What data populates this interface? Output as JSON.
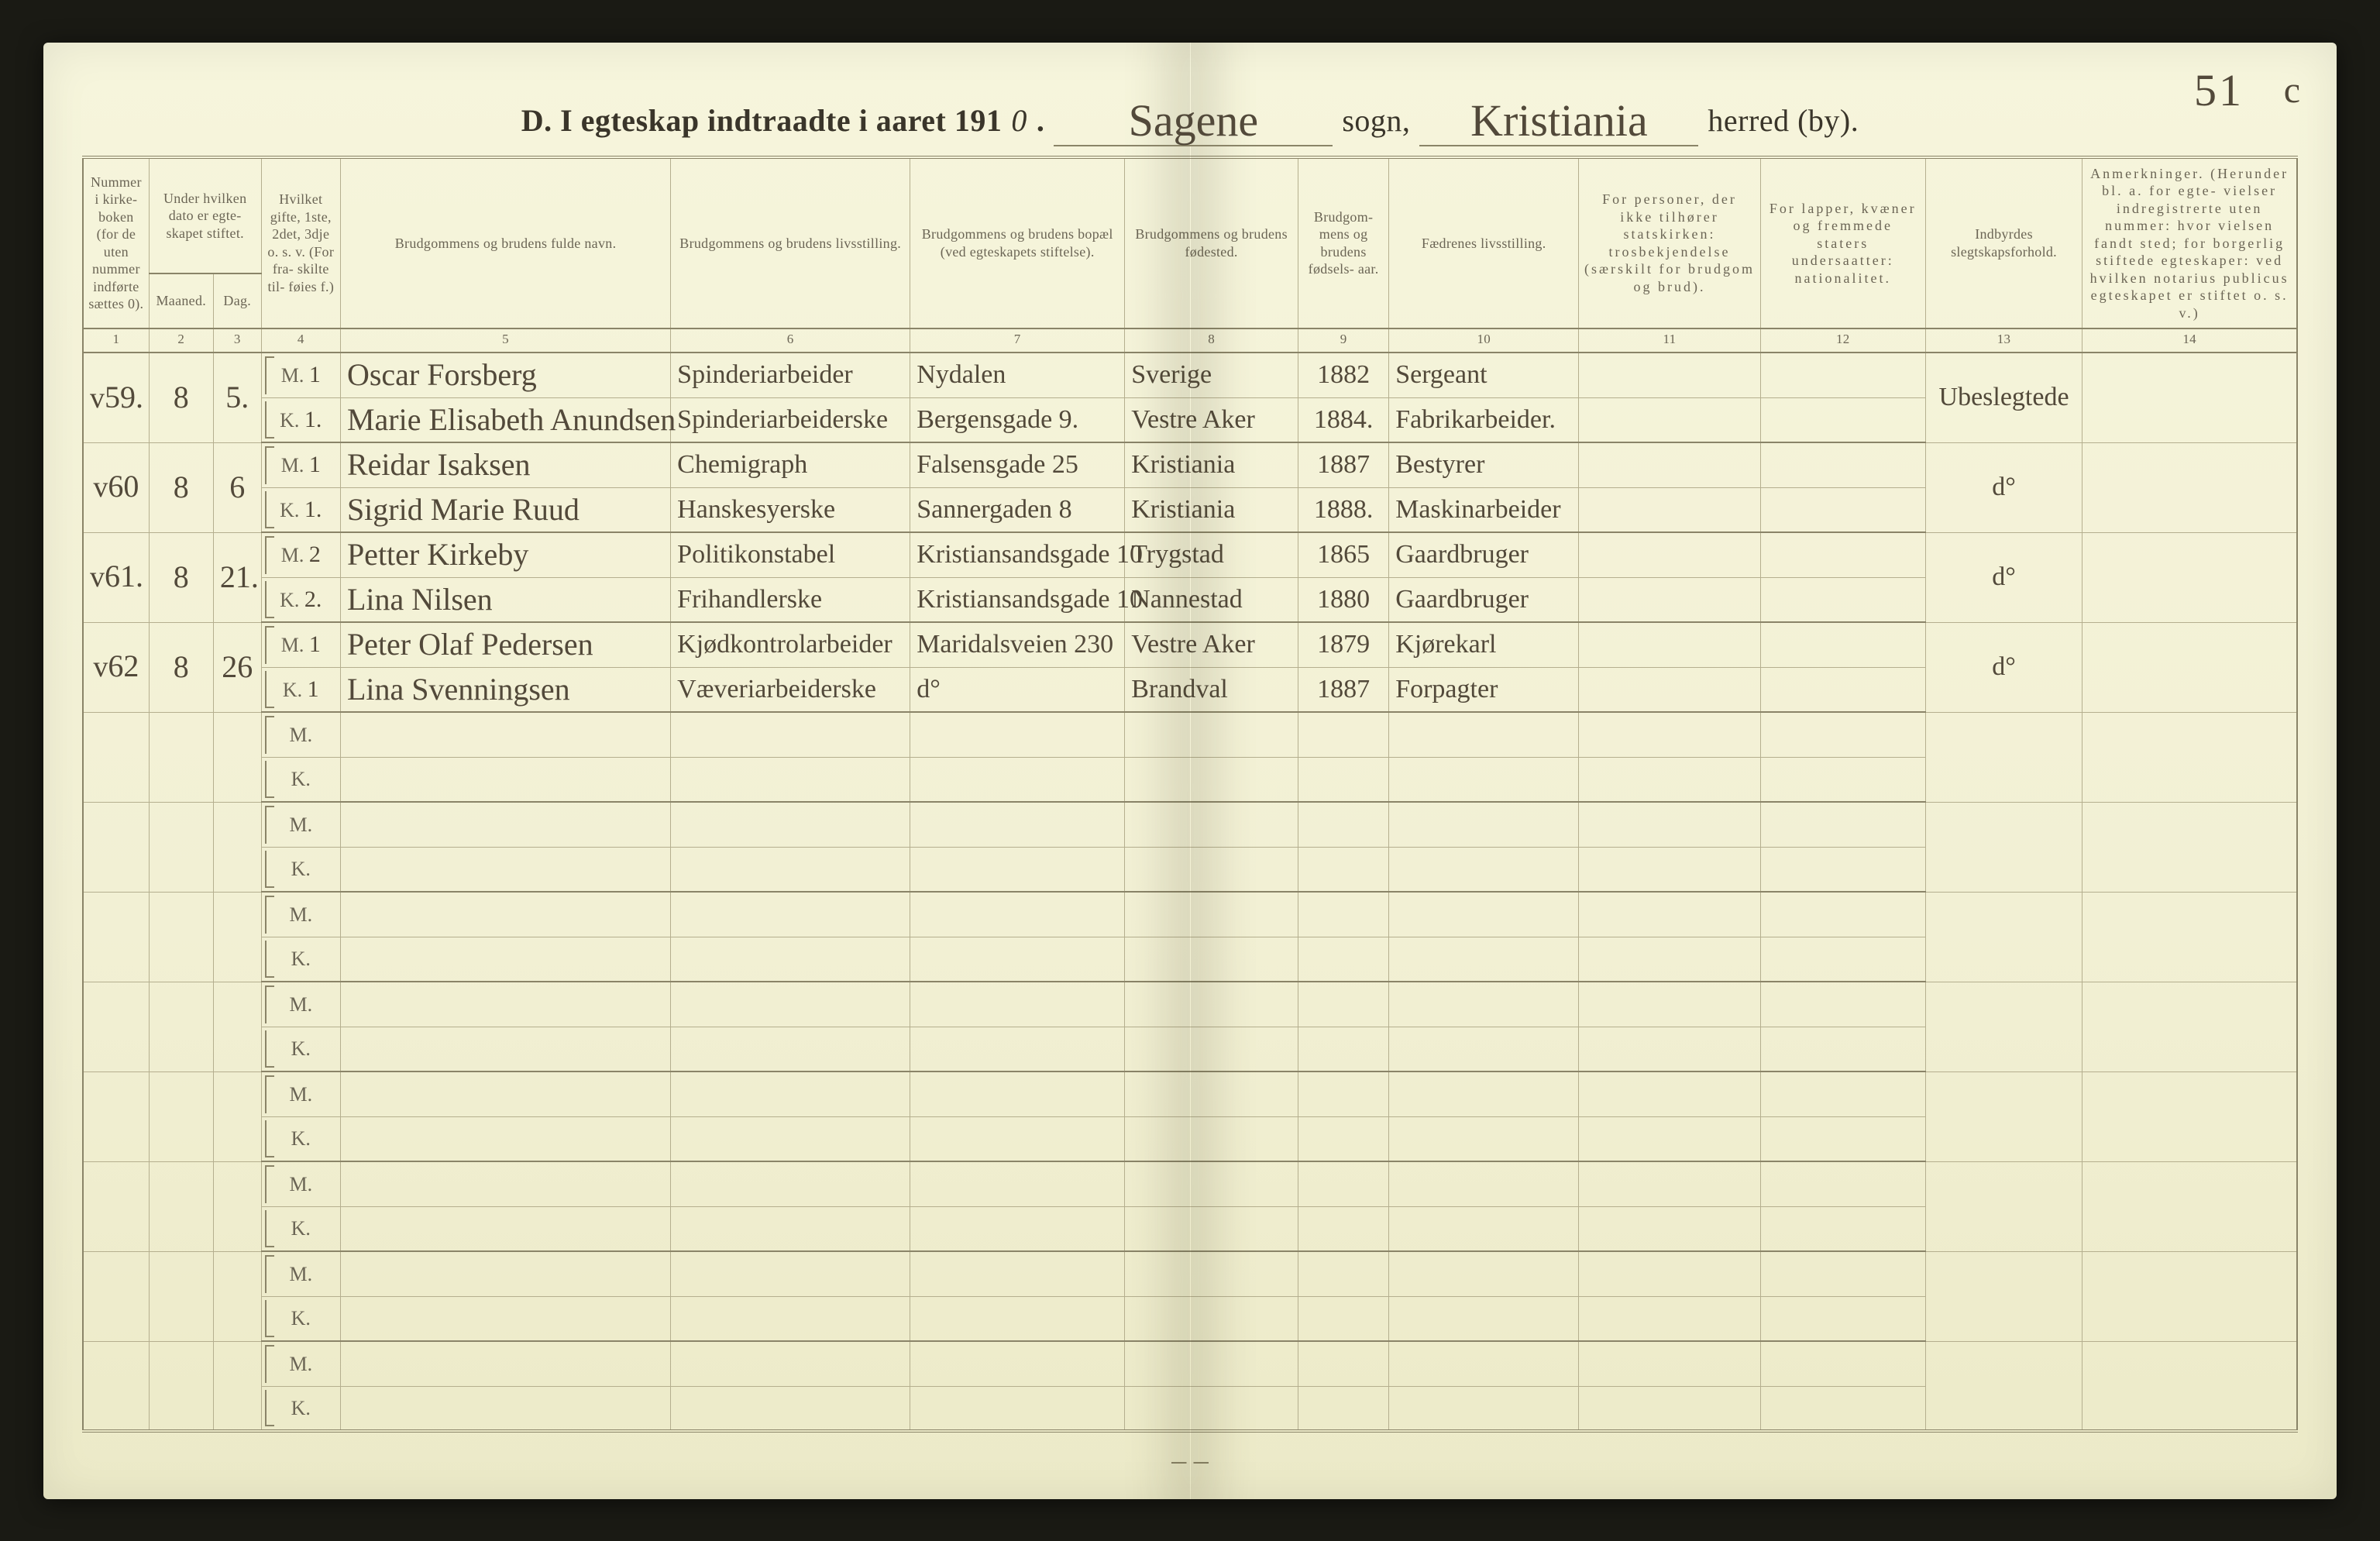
{
  "page_number": "51",
  "page_number_extra_mark": "c",
  "header": {
    "prefix": "D.  I egteskap indtraadte i aaret 191",
    "year_last_digit": "0",
    "dot": ".",
    "sogn_value": "Sagene",
    "sogn_label": "sogn,",
    "herred_value": "Kristiania",
    "herred_label": "herred (by)."
  },
  "columns": {
    "c1": {
      "num": "1",
      "label_top": "Nummer i kirke- boken (for de uten nummer indførte sættes 0)."
    },
    "c2a": {
      "num": "2",
      "label_top": "Under hvilken dato er egte- skapet stiftet.",
      "sub1": "Maaned."
    },
    "c2b": {
      "num": "3",
      "sub1": "Dag."
    },
    "c4": {
      "num": "4",
      "label_top": "Hvilket gifte, 1ste, 2det, 3dje o. s. v. (For fra- skilte til- føies f.)"
    },
    "c5": {
      "num": "5",
      "label_top": "Brudgommens og brudens fulde navn."
    },
    "c6": {
      "num": "6",
      "label_top": "Brudgommens og brudens livsstilling."
    },
    "c7": {
      "num": "7",
      "label_top": "Brudgommens og brudens bopæl (ved egteskapets stiftelse)."
    },
    "c8": {
      "num": "8",
      "label_top": "Brudgommens og brudens fødested."
    },
    "c9": {
      "num": "9",
      "label_top": "Brudgom- mens og brudens fødsels- aar."
    },
    "c10": {
      "num": "10",
      "label_top": "Fædrenes livsstilling."
    },
    "c11": {
      "num": "11",
      "label_top": "For personer, der ikke tilhører statskirken: trosbekjendelse (særskilt for brudgom og brud)."
    },
    "c12": {
      "num": "12",
      "label_top": "For lapper, kvæner og fremmede staters undersaatter: nationalitet."
    },
    "c13": {
      "num": "13",
      "label_top": "Indbyrdes slegtskapsforhold."
    },
    "c14": {
      "num": "14",
      "label_top": "Anmerkninger. (Herunder bl. a. for egte- vielser indregistrerte uten nummer: hvor vielsen fandt sted; for borgerlig stiftede egteskaper: ved hvilken notarius publicus egteskapet er stiftet o. s. v.)"
    }
  },
  "mk_label": {
    "M": "M.",
    "K": "K."
  },
  "entries": [
    {
      "tick": "v",
      "no": "59.",
      "month": "8",
      "day": "5.",
      "groom": {
        "gifte": "1",
        "name": "Oscar Forsberg",
        "occ": "Spinderiarbeider",
        "addr": "Nydalen",
        "birthplace": "Sverige",
        "year": "1882",
        "father": "Sergeant"
      },
      "bride": {
        "gifte": "1.",
        "name": "Marie Elisabeth Anundsen",
        "occ": "Spinderiarbeiderske",
        "addr": "Bergensgade 9.",
        "birthplace": "Vestre Aker",
        "year": "1884.",
        "father": "Fabrikarbeider."
      },
      "col13": "Ubeslegtede"
    },
    {
      "tick": "v",
      "no": "60",
      "month": "8",
      "day": "6",
      "groom": {
        "gifte": "1",
        "name": "Reidar Isaksen",
        "occ": "Chemigraph",
        "addr": "Falsensgade 25",
        "birthplace": "Kristiania",
        "year": "1887",
        "father": "Bestyrer"
      },
      "bride": {
        "gifte": "1.",
        "name": "Sigrid Marie Ruud",
        "occ": "Hanskesyerske",
        "addr": "Sannergaden 8",
        "birthplace": "Kristiania",
        "year": "1888.",
        "father": "Maskinarbeider"
      },
      "col13": "d°"
    },
    {
      "tick": "v",
      "no": "61.",
      "month": "8",
      "day": "21.",
      "groom": {
        "gifte": "2",
        "name": "Petter Kirkeby",
        "occ": "Politikonstabel",
        "addr": "Kristiansandsgade 10",
        "birthplace": "Trygstad",
        "year": "1865",
        "father": "Gaardbruger"
      },
      "bride": {
        "gifte": "2.",
        "name": "Lina Nilsen",
        "occ": "Frihandlerske",
        "addr": "Kristiansandsgade 10",
        "birthplace": "Nannestad",
        "year": "1880",
        "father": "Gaardbruger"
      },
      "col13": "d°"
    },
    {
      "tick": "v",
      "no": "62",
      "month": "8",
      "day": "26",
      "groom": {
        "gifte": "1",
        "name": "Peter Olaf Pedersen",
        "occ": "Kjødkontrolarbeider",
        "addr": "Maridalsveien 230",
        "birthplace": "Vestre Aker",
        "year": "1879",
        "father": "Kjørekarl"
      },
      "bride": {
        "gifte": "1",
        "name": "Lina Svenningsen",
        "occ": "Væveriarbeiderske",
        "addr": "d°",
        "birthplace": "Brandval",
        "year": "1887",
        "father": "Forpagter"
      },
      "col13": "d°"
    }
  ],
  "empty_pairs": 8,
  "footer_note": "–  –",
  "style": {
    "paper": "#f3f2d8",
    "ink": "#3a352a",
    "ink_light": "#6b6555",
    "rule": "#8a8468",
    "rule_light": "#b5af8f",
    "handwriting": "#52493a",
    "header_print_fontsize_pt": 30,
    "handwriting_fontsize_pt": 30,
    "th_fontsize_pt": 13
  }
}
